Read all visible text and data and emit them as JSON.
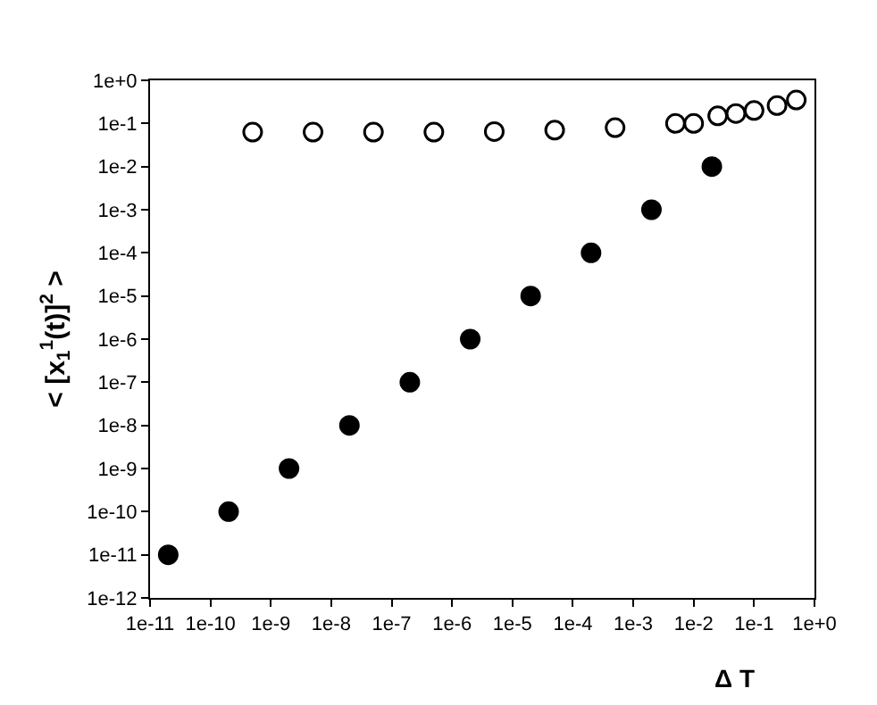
{
  "chart_data": {
    "type": "scatter",
    "xlabel": "Δ T",
    "ylabel": "< [x$_{1}$$^{1}$(t)]$^{2}$ >",
    "log": "xy",
    "grid": false,
    "marker": "circle",
    "series": [
      {
        "color": "#000000",
        "x": [
          2e-11,
          2e-10,
          2e-09,
          2e-08,
          2e-07,
          2e-06,
          2e-05,
          0.0002,
          0.002,
          0.02
        ],
        "values": [
          1e-11,
          1e-10,
          1e-09,
          1e-08,
          1e-07,
          1e-06,
          1e-05,
          0.0001,
          0.001,
          0.01
        ]
      },
      {
        "color": "#ffffff",
        "x": [
          5e-10,
          5e-09,
          5e-08,
          5e-07,
          5e-06,
          5e-05,
          0.0005,
          0.005,
          0.01,
          0.025,
          0.05,
          0.1,
          0.24,
          0.5
        ],
        "values": [
          0.063,
          0.063,
          0.063,
          0.063,
          0.065,
          0.07,
          0.08,
          0.1,
          0.1,
          0.15,
          0.17,
          0.2,
          0.26,
          0.35
        ]
      }
    ],
    "xlim": [
      1e-11,
      1
    ],
    "ylim": [
      1e-12,
      1
    ],
    "xticks": [
      {
        "value": 1e-11,
        "label": "1e-11"
      },
      {
        "value": 1e-10,
        "label": "1e-10"
      },
      {
        "value": 1e-09,
        "label": "1e-9"
      },
      {
        "value": 1e-08,
        "label": "1e-8"
      },
      {
        "value": 1e-07,
        "label": "1e-7"
      },
      {
        "value": 1e-06,
        "label": "1e-6"
      },
      {
        "value": 1e-05,
        "label": "1e-5"
      },
      {
        "value": 0.0001,
        "label": "1e-4"
      },
      {
        "value": 0.001,
        "label": "1e-3"
      },
      {
        "value": 0.01,
        "label": "1e-2"
      },
      {
        "value": 0.1,
        "label": "1e-1"
      },
      {
        "value": 1,
        "label": "1e+0"
      }
    ],
    "yticks": [
      {
        "value": 1e-12,
        "label": "1e-12"
      },
      {
        "value": 1e-11,
        "label": "1e-11"
      },
      {
        "value": 1e-10,
        "label": "1e-10"
      },
      {
        "value": 1e-09,
        "label": "1e-9"
      },
      {
        "value": 1e-08,
        "label": "1e-8"
      },
      {
        "value": 1e-07,
        "label": "1e-7"
      },
      {
        "value": 1e-06,
        "label": "1e-6"
      },
      {
        "value": 1e-05,
        "label": "1e-5"
      },
      {
        "value": 0.0001,
        "label": "1e-4"
      },
      {
        "value": 0.001,
        "label": "1e-3"
      },
      {
        "value": 0.01,
        "label": "1e-2"
      },
      {
        "value": 0.1,
        "label": "1e-1"
      },
      {
        "value": 1,
        "label": "1e+0"
      }
    ]
  }
}
